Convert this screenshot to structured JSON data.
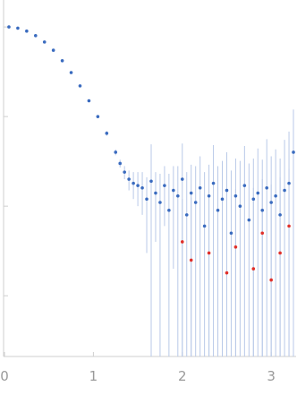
{
  "chart_data": {
    "type": "scatter",
    "ylog": true,
    "xlim": [
      0,
      3.28
    ],
    "xticks": [
      0,
      1,
      2,
      3
    ],
    "ylim": [
      0.00021,
      2
    ],
    "yticks": [
      1,
      0.1,
      0.01,
      0.001
    ],
    "error_color": "#b9c9e8",
    "series": [
      {
        "color": "#3a6bbf",
        "x": [
          0.05,
          0.15,
          0.25,
          0.35,
          0.45,
          0.55,
          0.65,
          0.75,
          0.85,
          0.95,
          1.05,
          1.15,
          1.25,
          1.3,
          1.35,
          1.4,
          1.45,
          1.5,
          1.55,
          1.6,
          1.65,
          1.7,
          1.75,
          1.8,
          1.85,
          1.9,
          1.95,
          2.0,
          2.05,
          2.1,
          2.15,
          2.2,
          2.25,
          2.3,
          2.35,
          2.4,
          2.45,
          2.5,
          2.55,
          2.6,
          2.65,
          2.7,
          2.75,
          2.8,
          2.85,
          2.9,
          2.95,
          3.0,
          3.05,
          3.1,
          3.15,
          3.2,
          3.25
        ],
        "values": [
          1.0,
          0.97,
          0.9,
          0.8,
          0.68,
          0.55,
          0.42,
          0.31,
          0.22,
          0.15,
          0.1,
          0.065,
          0.04,
          0.03,
          0.024,
          0.02,
          0.018,
          0.017,
          0.016,
          0.012,
          0.019,
          0.014,
          0.011,
          0.017,
          0.009,
          0.015,
          0.013,
          0.02,
          0.008,
          0.014,
          0.011,
          0.016,
          0.006,
          0.013,
          0.018,
          0.009,
          0.012,
          0.015,
          0.005,
          0.013,
          0.01,
          0.017,
          0.007,
          0.012,
          0.014,
          0.009,
          0.016,
          0.011,
          0.013,
          0.008,
          0.015,
          0.018,
          0.04
        ],
        "errors": [
          0.01,
          0.01,
          0.01,
          0.01,
          0.01,
          0.01,
          0.01,
          0.008,
          0.006,
          0.005,
          0.004,
          0.004,
          0.003,
          0.003,
          0.004,
          0.005,
          0.006,
          0.007,
          0.008,
          0.009,
          0.03,
          0.01,
          0.012,
          0.011,
          0.014,
          0.013,
          0.015,
          0.03,
          0.016,
          0.015,
          0.017,
          0.02,
          0.018,
          0.016,
          0.03,
          0.019,
          0.02,
          0.025,
          0.02,
          0.021,
          0.022,
          0.03,
          0.023,
          0.022,
          0.03,
          0.024,
          0.04,
          0.025,
          0.03,
          0.026,
          0.04,
          0.05,
          0.08
        ]
      },
      {
        "color": "#e0302a",
        "x": [
          2.0,
          2.1,
          2.3,
          2.5,
          2.6,
          2.8,
          2.9,
          3.0,
          3.1,
          3.2
        ],
        "values": [
          0.004,
          0.0025,
          0.003,
          0.0018,
          0.0035,
          0.002,
          0.005,
          0.0015,
          0.003,
          0.006
        ],
        "errors": [
          0.008,
          0.01,
          0.01,
          0.012,
          0.012,
          0.014,
          0.015,
          0.016,
          0.018,
          0.02
        ]
      }
    ]
  }
}
